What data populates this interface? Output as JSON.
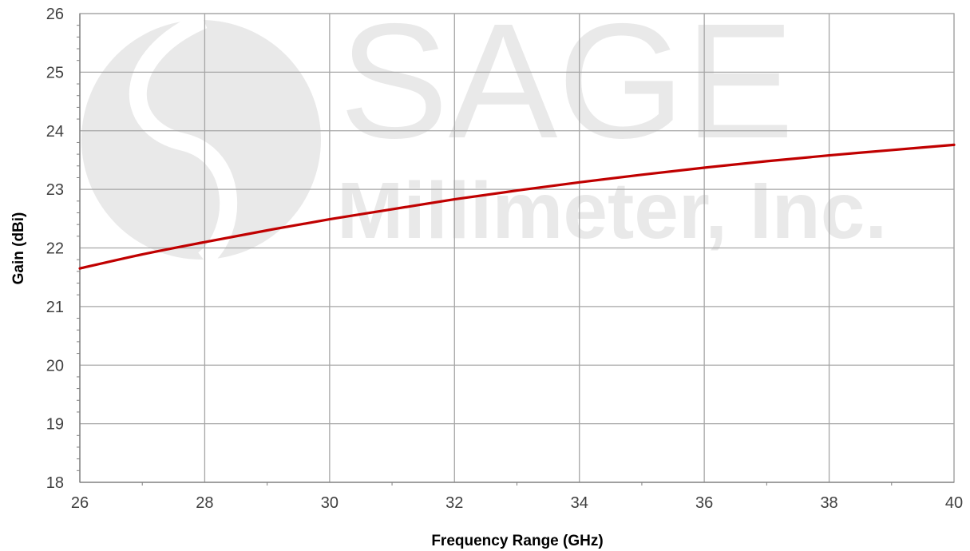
{
  "chart_data": {
    "type": "line",
    "title": "",
    "xlabel": "Frequency Range (GHz)",
    "ylabel": "Gain (dBi)",
    "xlim": [
      26,
      40
    ],
    "ylim": [
      18,
      26
    ],
    "x_ticks": [
      26,
      28,
      30,
      32,
      34,
      36,
      38,
      40
    ],
    "y_ticks": [
      18,
      19,
      20,
      21,
      22,
      23,
      24,
      25,
      26
    ],
    "grid": true,
    "legend": "none",
    "series": [
      {
        "color": "#c00000",
        "x": [
          26,
          27,
          28,
          29,
          30,
          31,
          32,
          33,
          34,
          35,
          36,
          37,
          38,
          39,
          40
        ],
        "y": [
          21.65,
          21.89,
          22.1,
          22.3,
          22.49,
          22.66,
          22.83,
          22.98,
          23.12,
          23.25,
          23.37,
          23.48,
          23.58,
          23.67,
          23.76
        ]
      }
    ]
  },
  "watermark": {
    "line1": "SAGE",
    "line2": "Millimeter, Inc."
  },
  "colors": {
    "grid": "#a6a6a6",
    "axis": "#808080",
    "watermark": "#e9e9e9"
  }
}
